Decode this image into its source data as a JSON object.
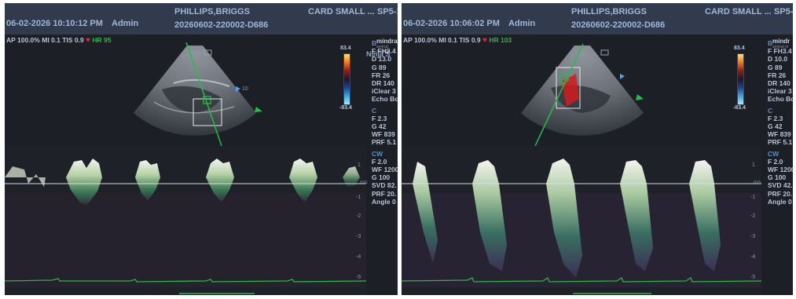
{
  "panels": [
    {
      "date_time": "06-02-2026  10:10:12 PM",
      "operator": "Admin",
      "patient": "PHILLIPS,BRIGGS",
      "study_id": "20260602-220002-D686",
      "preset": "CARD SMALL ...",
      "probe": "SP5-1",
      "status": {
        "ap": "AP 100.0%",
        "mi": "MI 0.1",
        "tis": "TIS 0.9",
        "hr": "HR 95"
      },
      "scale_top": "83.4",
      "scale_bottom": "-83.4",
      "logo": "mindray",
      "logo_sub": "animal medical",
      "ninja": "Ninja S",
      "b_mode": {
        "title": "B",
        "lines": [
          "F FH3.4",
          "D 13.0",
          "G 89",
          "FR 26",
          "DR 140",
          "iClear 3",
          "Echo Bo"
        ]
      },
      "c_mode": {
        "title": "C",
        "lines": [
          "F 2.3",
          "G 42",
          "WF 839",
          "PRF 5.1"
        ]
      },
      "cw_mode": {
        "title": "CW",
        "lines": [
          "F 2.0",
          "WF 1200",
          "G 100",
          "SVD 82.",
          "PRF 20.",
          "Angle 0"
        ]
      },
      "doppler_unit": "m/s",
      "doppler_ticks": [
        "1",
        "-1",
        "-2",
        "-3",
        "-4",
        "-5"
      ],
      "depth_marker": "10"
    },
    {
      "date_time": "06-02-2026  10:06:02 PM",
      "operator": "Admin",
      "patient": "PHILLIPS,BRIGGS",
      "study_id": "20260602-220002-D686",
      "preset": "CARD SMALL ...",
      "probe": "SP5-1",
      "status": {
        "ap": "AP 100.0%",
        "mi": "MI 0.1",
        "tis": "TIS 0.9",
        "hr": "HR 103"
      },
      "scale_top": "83.4",
      "scale_bottom": "-83.4",
      "logo": "mindr",
      "logo_sub": "animal m",
      "ninja": "Ninja S",
      "b_mode": {
        "title": "B",
        "lines": [
          "F FH3.4",
          "D 10.0",
          "G 89",
          "FR 26",
          "DR 140",
          "iClear 3",
          "Echo Bo"
        ]
      },
      "c_mode": {
        "title": "C",
        "lines": [
          "F 2.3",
          "G 42",
          "WF 839",
          "PRF 5.1"
        ]
      },
      "cw_mode": {
        "title": "CW",
        "lines": [
          "F 2.0",
          "WF 1200",
          "G 100",
          "SVD 42.",
          "PRF 20.",
          "Angle 0"
        ]
      },
      "doppler_unit": "m/s",
      "doppler_ticks": [
        "1",
        "-1",
        "-2",
        "-3",
        "-4",
        "-5"
      ],
      "depth_marker": ""
    }
  ],
  "colors": {
    "header_bg": "#323b4d",
    "screen_bg": "#1c1f26",
    "ecg": "#2fb44a",
    "heart": "#e0243b",
    "cursor": "#22c043",
    "color_flow": "#d21c1c"
  }
}
